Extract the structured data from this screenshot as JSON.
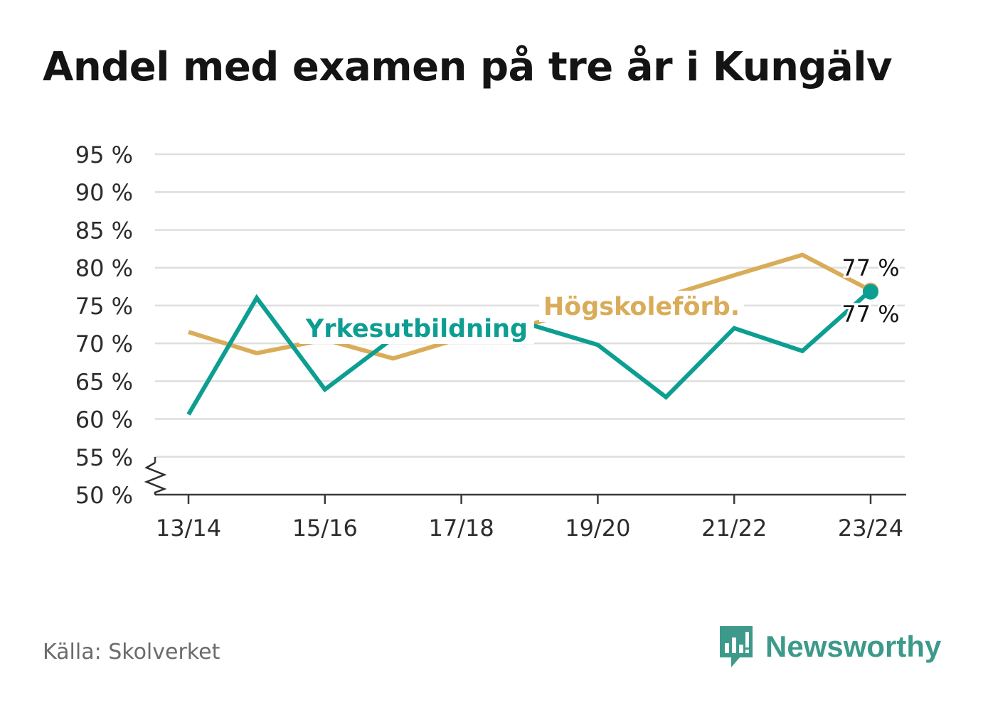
{
  "title": "Andel med examen på tre år i Kungälv",
  "source": "Källa: Skolverket",
  "brand": {
    "name": "Newsworthy",
    "icon": "newsworthy-logo-icon",
    "color": "#3d9a8b"
  },
  "chart_data": {
    "type": "line",
    "title": "Andel med examen på tre år i Kungälv",
    "xlabel": "",
    "ylabel": "",
    "x": [
      "13/14",
      "14/15",
      "15/16",
      "16/17",
      "17/18",
      "18/19",
      "19/20",
      "20/21",
      "21/22",
      "22/23",
      "23/24"
    ],
    "x_tick_labels": [
      "13/14",
      "15/16",
      "17/18",
      "19/20",
      "21/22",
      "23/24"
    ],
    "ylim": [
      50,
      95
    ],
    "y_ticks": [
      50,
      55,
      60,
      65,
      70,
      75,
      80,
      85,
      90,
      95
    ],
    "y_tick_labels": [
      "50 %",
      "55 %",
      "60 %",
      "65 %",
      "70 %",
      "75 %",
      "80 %",
      "85 %",
      "90 %",
      "95 %"
    ],
    "y_axis_break": true,
    "grid": true,
    "series": [
      {
        "name": "Högskoleförb.",
        "color": "#d9ac59",
        "values": [
          71.5,
          68.7,
          70.5,
          68.0,
          70.7,
          72.5,
          75.0,
          76.2,
          79.0,
          81.7,
          77.0
        ],
        "end_label": "77 %"
      },
      {
        "name": "Yrkesutbildning",
        "color": "#0d9e92",
        "values": [
          60.6,
          76.0,
          63.9,
          70.7,
          73.0,
          72.5,
          69.8,
          62.9,
          72.0,
          69.0,
          77.0
        ],
        "end_label": "77 %"
      }
    ]
  }
}
